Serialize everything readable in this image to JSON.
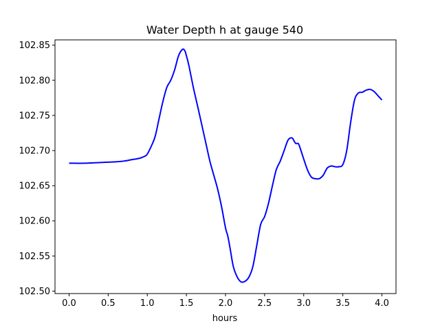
{
  "chart_data": {
    "type": "line",
    "title": "Water Depth h at gauge 540",
    "xlabel": "hours",
    "ylabel": "",
    "xlim": [
      -0.18,
      4.18
    ],
    "ylim": [
      102.4965,
      102.8575
    ],
    "xticks": [
      "0.0",
      "0.5",
      "1.0",
      "1.5",
      "2.0",
      "2.5",
      "3.0",
      "3.5",
      "4.0"
    ],
    "yticks": [
      "102.50",
      "102.55",
      "102.60",
      "102.65",
      "102.70",
      "102.75",
      "102.80",
      "102.85"
    ],
    "grid": false,
    "series": [
      {
        "color": "#0000ff",
        "x": [
          0.0,
          0.2,
          0.4,
          0.6,
          0.7,
          0.8,
          0.9,
          0.97,
          1.0,
          1.05,
          1.1,
          1.15,
          1.2,
          1.25,
          1.3,
          1.35,
          1.4,
          1.45,
          1.48,
          1.5,
          1.53,
          1.57,
          1.6,
          1.65,
          1.7,
          1.75,
          1.8,
          1.85,
          1.9,
          1.95,
          2.0,
          2.03,
          2.06,
          2.1,
          2.15,
          2.2,
          2.25,
          2.3,
          2.35,
          2.4,
          2.45,
          2.5,
          2.55,
          2.6,
          2.65,
          2.7,
          2.75,
          2.8,
          2.85,
          2.88,
          2.9,
          2.93,
          2.95,
          3.0,
          3.05,
          3.1,
          3.15,
          3.2,
          3.25,
          3.3,
          3.35,
          3.4,
          3.45,
          3.5,
          3.55,
          3.6,
          3.65,
          3.7,
          3.75,
          3.8,
          3.85,
          3.9,
          3.95,
          4.0
        ],
        "y": [
          102.682,
          102.682,
          102.683,
          102.684,
          102.685,
          102.687,
          102.689,
          102.692,
          102.695,
          102.706,
          102.72,
          102.745,
          102.77,
          102.79,
          102.8,
          102.815,
          102.835,
          102.844,
          102.842,
          102.835,
          102.822,
          102.8,
          102.784,
          102.76,
          102.735,
          102.71,
          102.685,
          102.665,
          102.645,
          102.62,
          102.59,
          102.578,
          102.56,
          102.535,
          102.52,
          102.513,
          102.514,
          102.52,
          102.535,
          102.565,
          102.595,
          102.606,
          102.625,
          102.65,
          102.673,
          102.685,
          102.7,
          102.715,
          102.718,
          102.713,
          102.71,
          102.71,
          102.705,
          102.688,
          102.672,
          102.662,
          102.66,
          102.66,
          102.665,
          102.675,
          102.678,
          102.677,
          102.677,
          102.68,
          102.7,
          102.74,
          102.772,
          102.782,
          102.783,
          102.786,
          102.787,
          102.784,
          102.778,
          102.772
        ]
      }
    ]
  }
}
